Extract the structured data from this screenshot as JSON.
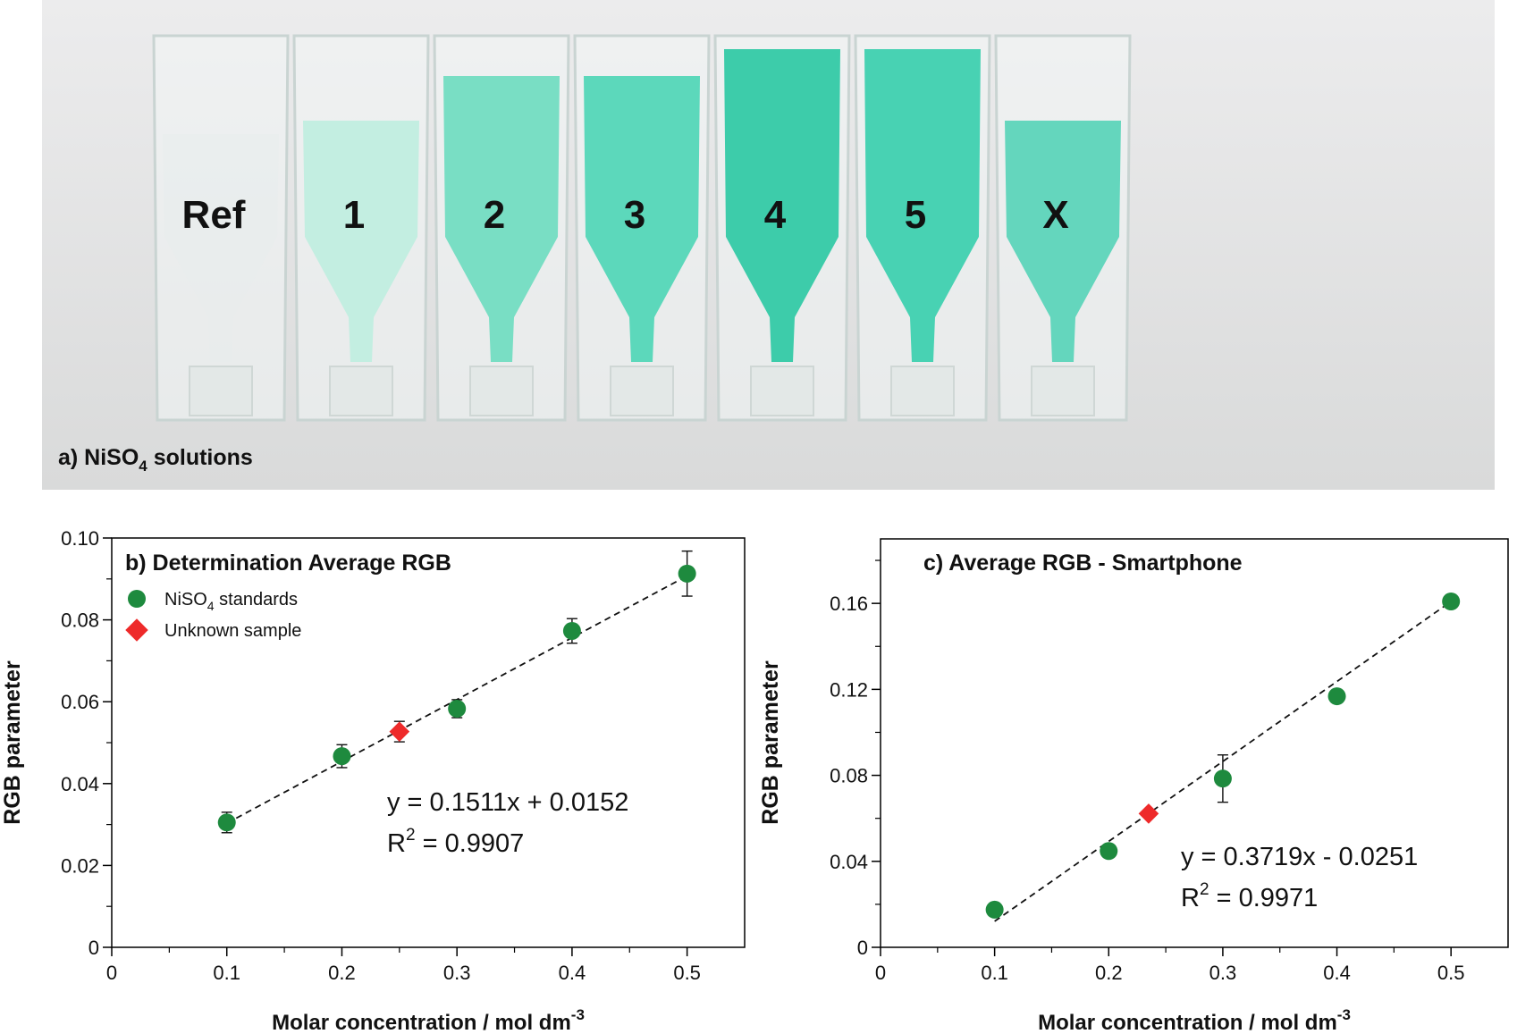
{
  "photo": {
    "caption_prefix": "a) NiSO",
    "caption_sub": "4",
    "caption_suffix": " solutions",
    "cuvette_labels": [
      "Ref",
      "1",
      "2",
      "3",
      "4",
      "5",
      "X"
    ],
    "cuvette_fill_colors": [
      "#e8ecec",
      "#bfeee0",
      "#6fdcc0",
      "#4fd6b6",
      "#2ec9a4",
      "#3acfae",
      "#58d4b8"
    ]
  },
  "chart_data": [
    {
      "type": "scatter",
      "title": "b) Determination Average RGB",
      "xlabel": "Molar concentration / mol dm",
      "xlabel_sup": "-3",
      "ylabel": "RGB parameter",
      "xlim": [
        0,
        0.55
      ],
      "ylim": [
        0,
        0.1
      ],
      "xticks": [
        0,
        0.1,
        0.2,
        0.3,
        0.4,
        0.5
      ],
      "xtick_labels": [
        "0",
        "0.1",
        "0.2",
        "0.3",
        "0.4",
        "0.5"
      ],
      "yticks": [
        0,
        0.02,
        0.04,
        0.06,
        0.08,
        0.1
      ],
      "ytick_labels": [
        "0",
        "0.02",
        "0.04",
        "0.06",
        "0.08",
        "0.10"
      ],
      "legend": {
        "position": "top-left",
        "entries": [
          {
            "label": "NiSO",
            "sub": "4",
            "after": " standards",
            "marker": "circle",
            "color": "#1e8a3e"
          },
          {
            "label": "Unknown sample",
            "sub": "",
            "after": "",
            "marker": "diamond",
            "color": "#ee2a2a"
          }
        ]
      },
      "series": [
        {
          "name": "NiSO4 standards",
          "marker": "circle",
          "color": "#1e8a3e",
          "x": [
            0.1,
            0.2,
            0.3,
            0.4,
            0.5
          ],
          "y": [
            0.0305,
            0.0467,
            0.0583,
            0.0773,
            0.0913
          ],
          "err": [
            0.0025,
            0.0028,
            0.0022,
            0.003,
            0.0055
          ]
        },
        {
          "name": "Unknown sample",
          "marker": "diamond",
          "color": "#ee2a2a",
          "x": [
            0.25
          ],
          "y": [
            0.0527
          ],
          "err": [
            0.0025
          ]
        }
      ],
      "fit": {
        "slope": 0.1511,
        "intercept": 0.0152,
        "x_range": [
          0.1,
          0.5
        ]
      },
      "equation": "y = 0.1511x + 0.0152",
      "r2_prefix": "R",
      "r2_sup": "2",
      "r2_suffix": " = 0.9907"
    },
    {
      "type": "scatter",
      "title": "c) Average RGB - Smartphone",
      "xlabel": "Molar concentration / mol dm",
      "xlabel_sup": "-3",
      "ylabel": "RGB parameter",
      "xlim": [
        0,
        0.55
      ],
      "ylim": [
        0,
        0.19
      ],
      "xticks": [
        0,
        0.1,
        0.2,
        0.3,
        0.4,
        0.5
      ],
      "xtick_labels": [
        "0",
        "0.1",
        "0.2",
        "0.3",
        "0.4",
        "0.5"
      ],
      "yticks": [
        0,
        0.04,
        0.08,
        0.12,
        0.16
      ],
      "ytick_labels": [
        "0",
        "0.04",
        "0.08",
        "0.12",
        "0.16"
      ],
      "series": [
        {
          "name": "NiSO4 standards",
          "marker": "circle",
          "color": "#1e8a3e",
          "x": [
            0.1,
            0.2,
            0.3,
            0.4,
            0.5
          ],
          "y": [
            0.0175,
            0.0448,
            0.0785,
            0.1168,
            0.1609
          ],
          "err": [
            0,
            0,
            0.011,
            0,
            0
          ]
        },
        {
          "name": "Unknown sample",
          "marker": "diamond",
          "color": "#ee2a2a",
          "x": [
            0.235
          ],
          "y": [
            0.0622
          ],
          "err": [
            0
          ]
        }
      ],
      "fit": {
        "slope": 0.3719,
        "intercept": -0.0251,
        "x_range": [
          0.1,
          0.5
        ]
      },
      "equation": "y = 0.3719x - 0.0251",
      "r2_prefix": "R",
      "r2_sup": "2",
      "r2_suffix": " = 0.9971"
    }
  ]
}
